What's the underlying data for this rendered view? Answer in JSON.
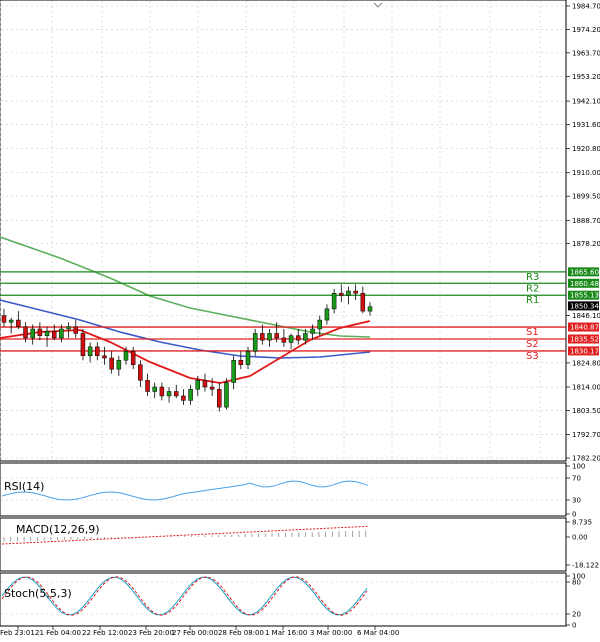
{
  "chart_data": {
    "type": "candlestick",
    "symbol": "",
    "price_axis": {
      "ticks": [
        "1984.70",
        "1974.20",
        "1963.70",
        "1953.20",
        "1942.10",
        "1931.60",
        "1920.80",
        "1910.00",
        "1899.50",
        "1888.70",
        "1878.20",
        "1846.10",
        "1824.80",
        "1814.00",
        "1803.50",
        "1792.70",
        "1782.20"
      ],
      "ylim": [
        1782.2,
        1986.0
      ]
    },
    "time_axis": {
      "labels": [
        "Feb 23:01",
        "21 Feb 04:00",
        "22 Feb 12:00",
        "23 Feb 20:00",
        "27 Feb 00:00",
        "28 Feb 08:00",
        "1 Mar 16:00",
        "3 Mar 00:00",
        "6 Mar 04:00"
      ]
    },
    "levels": [
      {
        "name": "R3",
        "value": "1865.60",
        "color": "#1a8a1a"
      },
      {
        "name": "R2",
        "value": "1860.48",
        "color": "#1a8a1a"
      },
      {
        "name": "R1",
        "value": "1855.13",
        "color": "#1a8a1a"
      },
      {
        "name": "S1",
        "value": "1840.87",
        "color": "#e02020"
      },
      {
        "name": "S2",
        "value": "1835.52",
        "color": "#e02020"
      },
      {
        "name": "S3",
        "value": "1830.17",
        "color": "#e02020"
      }
    ],
    "last_price": "1850.34",
    "candles": [
      [
        1846,
        1849,
        1841,
        1843
      ],
      [
        1843,
        1845,
        1838,
        1844
      ],
      [
        1844,
        1848,
        1840,
        1841
      ],
      [
        1841,
        1843,
        1834,
        1836
      ],
      [
        1836,
        1842,
        1833,
        1840
      ],
      [
        1840,
        1843,
        1835,
        1837
      ],
      [
        1837,
        1841,
        1832,
        1839
      ],
      [
        1839,
        1842,
        1835,
        1836
      ],
      [
        1836,
        1842,
        1834,
        1840
      ],
      [
        1840,
        1843,
        1836,
        1841
      ],
      [
        1841,
        1844,
        1836,
        1838
      ],
      [
        1838,
        1840,
        1826,
        1828
      ],
      [
        1828,
        1834,
        1825,
        1832
      ],
      [
        1832,
        1834,
        1826,
        1828
      ],
      [
        1828,
        1832,
        1824,
        1827
      ],
      [
        1827,
        1830,
        1820,
        1822
      ],
      [
        1822,
        1828,
        1819,
        1826
      ],
      [
        1826,
        1832,
        1824,
        1830
      ],
      [
        1830,
        1832,
        1822,
        1824
      ],
      [
        1824,
        1826,
        1814,
        1817
      ],
      [
        1817,
        1820,
        1810,
        1812
      ],
      [
        1812,
        1816,
        1809,
        1814
      ],
      [
        1814,
        1816,
        1808,
        1810
      ],
      [
        1810,
        1814,
        1807,
        1812
      ],
      [
        1812,
        1815,
        1809,
        1810
      ],
      [
        1810,
        1813,
        1806,
        1808
      ],
      [
        1808,
        1815,
        1806,
        1813
      ],
      [
        1813,
        1819,
        1810,
        1817
      ],
      [
        1817,
        1820,
        1812,
        1814
      ],
      [
        1814,
        1818,
        1810,
        1813
      ],
      [
        1813,
        1816,
        1803,
        1805
      ],
      [
        1805,
        1818,
        1804,
        1816
      ],
      [
        1816,
        1828,
        1813,
        1826
      ],
      [
        1826,
        1830,
        1822,
        1824
      ],
      [
        1824,
        1832,
        1822,
        1830
      ],
      [
        1830,
        1840,
        1828,
        1838
      ],
      [
        1838,
        1842,
        1833,
        1835
      ],
      [
        1835,
        1840,
        1832,
        1838
      ],
      [
        1838,
        1843,
        1834,
        1836
      ],
      [
        1836,
        1840,
        1832,
        1834
      ],
      [
        1834,
        1838,
        1831,
        1837
      ],
      [
        1837,
        1840,
        1833,
        1835
      ],
      [
        1835,
        1840,
        1833,
        1838
      ],
      [
        1838,
        1842,
        1835,
        1840
      ],
      [
        1840,
        1846,
        1837,
        1844
      ],
      [
        1844,
        1851,
        1842,
        1849
      ],
      [
        1849,
        1858,
        1847,
        1856
      ],
      [
        1856,
        1860,
        1852,
        1855
      ],
      [
        1855,
        1859,
        1851,
        1857
      ],
      [
        1857,
        1860,
        1853,
        1856
      ],
      [
        1856,
        1859,
        1847,
        1848
      ],
      [
        1848,
        1852,
        1846,
        1850
      ]
    ],
    "indicators": [
      {
        "name": "RSI(14)",
        "ticks": [
          "100",
          "70",
          "30",
          "0"
        ]
      },
      {
        "name": "MACD(12,26,9)",
        "ticks": [
          "8.735",
          "0.00",
          "-18.122"
        ]
      },
      {
        "name": "Stoch(5,5,3)",
        "ticks": [
          "100",
          "80",
          "20",
          "0"
        ]
      }
    ]
  }
}
